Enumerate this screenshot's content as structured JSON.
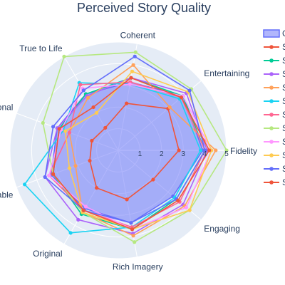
{
  "chart_data": {
    "type": "radar",
    "title": "Perceived Story Quality",
    "axes": [
      "Fidelity",
      "Entertaining",
      "Coherent",
      "True to Life",
      "Emotional",
      "Relatable",
      "Original",
      "Rich Imagery",
      "Engaging"
    ],
    "radial_range": [
      0,
      5
    ],
    "radial_ticks": [
      "1",
      "2",
      "3",
      "4",
      "5"
    ],
    "grid": true,
    "legend_position": "right",
    "colors": {
      "polar_background": "#e5ecf6",
      "grid": "#ffffff",
      "text": "#2a3f5f"
    },
    "series": [
      {
        "name": "C",
        "color": "#636efa",
        "fill": true,
        "values": [
          3.9,
          3.9,
          3.2,
          3.0,
          3.0,
          3.3,
          3.1,
          3.4,
          3.3
        ]
      },
      {
        "name": "S",
        "color": "#ef553b",
        "fill": false,
        "values": [
          2.8,
          3.0,
          2.2,
          1.2,
          1.3,
          1.4,
          2.0,
          2.3,
          2.1
        ]
      },
      {
        "name": "S",
        "color": "#00cc96",
        "fill": false,
        "values": [
          4.0,
          3.9,
          3.4,
          3.0,
          2.9,
          3.2,
          3.4,
          3.7,
          3.5
        ]
      },
      {
        "name": "S",
        "color": "#ab63fa",
        "fill": false,
        "values": [
          4.1,
          4.1,
          3.4,
          2.9,
          3.0,
          3.6,
          3.7,
          3.9,
          3.9
        ]
      },
      {
        "name": "S",
        "color": "#ffa15a",
        "fill": false,
        "values": [
          4.5,
          3.1,
          4.0,
          2.8,
          2.4,
          2.1,
          3.3,
          4.0,
          4.0
        ]
      },
      {
        "name": "S",
        "color": "#19d3f3",
        "fill": false,
        "values": [
          3.8,
          3.7,
          3.1,
          3.6,
          2.7,
          4.6,
          4.4,
          3.6,
          3.4
        ]
      },
      {
        "name": "S",
        "color": "#ff6692",
        "fill": false,
        "values": [
          4.0,
          3.8,
          3.2,
          3.5,
          2.4,
          3.4,
          3.2,
          3.6,
          3.7
        ]
      },
      {
        "name": "S",
        "color": "#b6e880",
        "fill": false,
        "values": [
          5.0,
          4.4,
          4.6,
          5.0,
          3.7,
          3.2,
          3.3,
          4.3,
          4.3
        ]
      },
      {
        "name": "S",
        "color": "#ff97ff",
        "fill": false,
        "values": [
          4.3,
          3.9,
          3.1,
          3.3,
          2.8,
          3.4,
          3.0,
          3.7,
          4.1
        ]
      },
      {
        "name": "S",
        "color": "#fecb52",
        "fill": false,
        "values": [
          4.3,
          4.2,
          3.7,
          2.0,
          2.6,
          2.4,
          3.3,
          3.7,
          4.3
        ]
      },
      {
        "name": "S",
        "color": "#636efa",
        "fill": false,
        "values": [
          4.0,
          4.3,
          4.4,
          3.2,
          3.2,
          3.6,
          3.2,
          3.4,
          3.5
        ]
      },
      {
        "name": "S",
        "color": "#ef553b",
        "fill": false,
        "values": [
          4.2,
          3.8,
          3.4,
          2.3,
          2.9,
          3.2,
          3.2,
          3.7,
          3.6
        ]
      }
    ]
  }
}
